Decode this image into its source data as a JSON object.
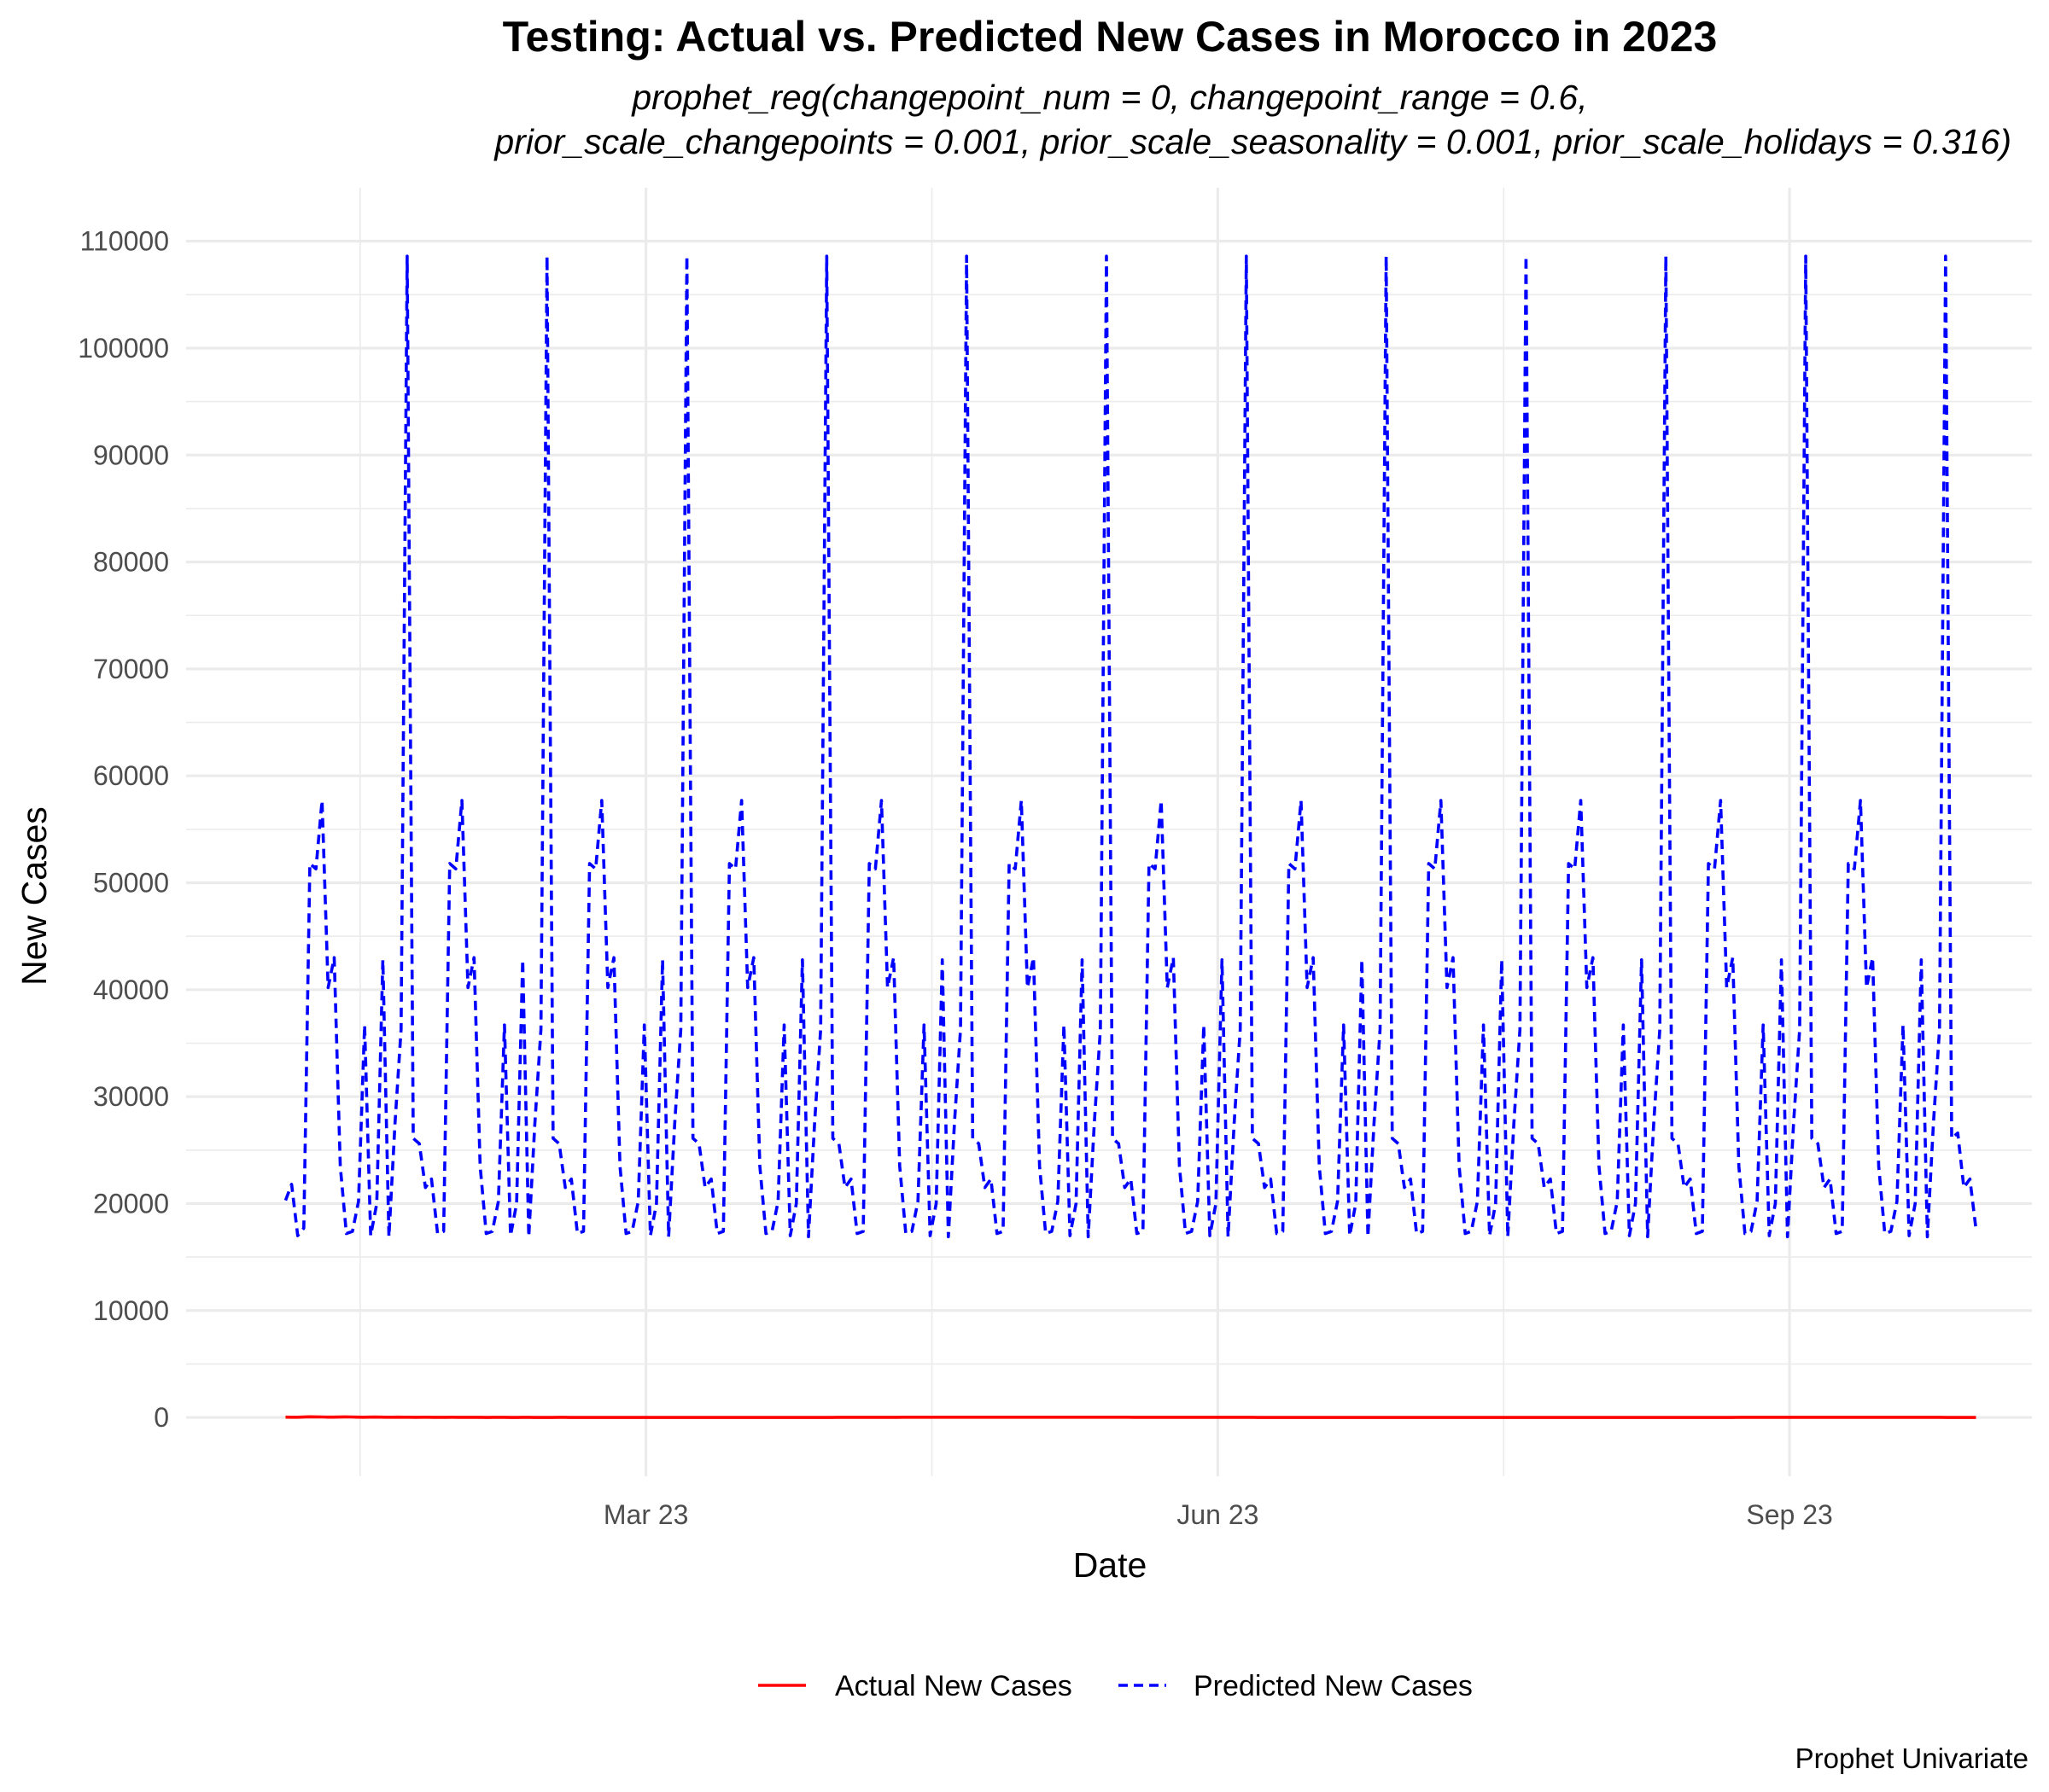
{
  "chart_data": {
    "type": "line",
    "title": "Testing: Actual vs. Predicted New Cases in Morocco in 2023",
    "subtitle_lines": [
      "prophet_reg(changepoint_num = 0, changepoint_range = 0.6,",
      "prior_scale_changepoints = 0.001, prior_scale_seasonality = 0.001, prior_scale_holidays = 0.316)"
    ],
    "xlabel": "Date",
    "ylabel": "New Cases",
    "caption": "Prophet Univariate",
    "x_start": "2023-01-02",
    "x_end": "2023-10-01",
    "xlim": [
      "2022-12-17",
      "2023-10-10"
    ],
    "ylim": [
      -5500,
      115000
    ],
    "x_ticks": [
      {
        "label": "Mar 23",
        "date": "2023-03-01"
      },
      {
        "label": "Jun 23",
        "date": "2023-06-01"
      },
      {
        "label": "Sep 23",
        "date": "2023-09-01"
      }
    ],
    "y_ticks": [
      0,
      10000,
      20000,
      30000,
      40000,
      50000,
      60000,
      70000,
      80000,
      90000,
      100000,
      110000
    ],
    "y_tick_labels": [
      "0",
      "10000",
      "20000",
      "30000",
      "40000",
      "50000",
      "60000",
      "70000",
      "80000",
      "90000",
      "100000",
      "110000"
    ],
    "legend_position": "bottom",
    "series": [
      {
        "name": "Actual New Cases",
        "color": "#ff0000",
        "linestyle": "solid",
        "values": [
          30,
          25,
          20,
          40,
          60,
          50,
          45,
          35,
          30,
          40,
          55,
          45,
          30,
          25,
          35,
          40,
          30,
          20,
          20,
          30,
          25,
          20,
          15,
          20,
          25,
          15,
          10,
          15,
          20,
          15,
          10,
          10,
          15,
          10,
          5,
          10,
          15,
          10,
          5,
          5,
          10,
          10,
          5,
          5,
          5,
          5,
          10,
          10,
          5,
          5,
          0,
          5,
          5,
          5,
          0,
          0,
          5,
          5,
          5,
          5,
          0,
          5,
          5,
          5,
          0,
          0,
          5,
          5,
          5,
          0,
          0,
          0,
          5,
          5,
          5,
          5,
          0,
          5,
          5,
          5,
          5,
          0,
          5,
          5,
          5,
          5,
          5,
          5,
          5,
          5,
          5,
          5,
          5,
          10,
          10,
          10,
          10,
          10,
          10,
          15,
          15,
          15,
          15,
          15,
          20,
          20,
          20,
          20,
          20,
          20,
          20,
          20,
          20,
          20,
          20,
          20,
          20,
          20,
          20,
          20,
          20,
          20,
          20,
          20,
          20,
          20,
          20,
          20,
          20,
          20,
          20,
          20,
          20,
          20,
          20,
          20,
          20,
          20,
          20,
          20,
          20,
          20,
          20,
          15,
          15,
          15,
          15,
          15,
          15,
          15,
          15,
          15,
          15,
          10,
          10,
          10,
          10,
          10,
          10,
          10,
          10,
          10,
          10,
          10,
          5,
          5,
          5,
          5,
          5,
          5,
          5,
          5,
          5,
          5,
          5,
          5,
          5,
          5,
          5,
          5,
          5,
          5,
          5,
          5,
          5,
          5,
          5,
          5,
          5,
          5,
          5,
          5,
          5,
          5,
          5,
          5,
          5,
          5,
          5,
          5,
          5,
          5,
          5,
          5,
          5,
          5,
          5,
          5,
          5,
          5,
          5,
          5,
          5,
          5,
          5,
          5,
          5,
          5,
          5,
          5,
          5,
          5,
          5,
          5,
          5,
          5,
          5,
          5,
          5,
          5,
          5,
          5,
          5,
          5,
          5,
          5,
          5,
          5,
          5,
          5,
          5,
          5,
          5,
          5,
          5,
          10,
          10,
          10,
          10,
          10,
          10,
          10,
          10,
          10,
          10,
          10,
          10,
          10,
          10,
          10,
          10,
          10,
          10,
          10,
          10,
          15,
          15,
          15,
          15,
          15,
          15,
          15,
          15,
          15,
          10,
          10,
          10,
          10,
          10,
          10,
          5,
          5,
          5,
          5,
          5,
          5
        ]
      },
      {
        "name": "Predicted New Cases",
        "color": "#0000ff",
        "linestyle": "dashed",
        "values": [
          20300,
          21800,
          17000,
          17700,
          51800,
          51300,
          57700,
          40200,
          43000,
          23500,
          17200,
          17400,
          20200,
          36700,
          17000,
          20000,
          42800,
          16900,
          27500,
          36300,
          108600,
          26100,
          25600,
          21500,
          22300,
          17200,
          17400,
          51800,
          51300,
          57700,
          40200,
          43000,
          23500,
          17200,
          17400,
          20200,
          36700,
          17000,
          20000,
          42800,
          16900,
          27500,
          36300,
          108600,
          26100,
          25600,
          21500,
          22300,
          17200,
          17400,
          51800,
          51300,
          57700,
          40200,
          43000,
          23500,
          17200,
          17400,
          20200,
          36700,
          17000,
          20000,
          42800,
          16900,
          27500,
          36300,
          108600,
          26100,
          25600,
          21500,
          22300,
          17200,
          17400,
          51800,
          51300,
          57700,
          40200,
          43000,
          23500,
          17200,
          17400,
          20200,
          36700,
          17000,
          20000,
          42800,
          16900,
          27500,
          36300,
          108600,
          26100,
          25600,
          21500,
          22300,
          17200,
          17400,
          51800,
          51300,
          57700,
          40200,
          43000,
          23500,
          17200,
          17400,
          20200,
          36700,
          17000,
          20000,
          42800,
          16900,
          27500,
          36300,
          108600,
          26100,
          25600,
          21500,
          22300,
          17200,
          17400,
          51800,
          51300,
          57700,
          40200,
          43000,
          23500,
          17200,
          17400,
          20200,
          36700,
          17000,
          20000,
          42800,
          16900,
          27500,
          36300,
          108600,
          26100,
          25600,
          21500,
          22300,
          17200,
          17400,
          51800,
          51300,
          57700,
          40200,
          43000,
          23500,
          17200,
          17400,
          20200,
          36700,
          17000,
          20000,
          42800,
          16900,
          27500,
          36300,
          108600,
          26100,
          25600,
          21500,
          22300,
          17200,
          17400,
          51800,
          51300,
          57700,
          40200,
          43000,
          23500,
          17200,
          17400,
          20200,
          36700,
          17000,
          20000,
          42800,
          16900,
          27500,
          36300,
          108600,
          26100,
          25600,
          21500,
          22300,
          17200,
          17400,
          51800,
          51300,
          57700,
          40200,
          43000,
          23500,
          17200,
          17400,
          20200,
          36700,
          17000,
          20000,
          42800,
          16900,
          27500,
          36300,
          108600,
          26100,
          25600,
          21500,
          22300,
          17200,
          17400,
          51800,
          51300,
          57700,
          40200,
          43000,
          23500,
          17200,
          17400,
          20200,
          36700,
          17000,
          20000,
          42800,
          16900,
          27500,
          36300,
          108600,
          26100,
          25600,
          21500,
          22300,
          17200,
          17400,
          51800,
          51300,
          57700,
          40200,
          43000,
          23500,
          17200,
          17400,
          20200,
          36700,
          17000,
          20000,
          42800,
          16900,
          27500,
          36300,
          108600,
          26100,
          25600,
          21500,
          22300,
          17200,
          17400,
          51800,
          51300,
          57700,
          40200,
          43000,
          23500,
          17200,
          17400,
          20200,
          36700,
          17000,
          20000,
          42800,
          16900,
          27500,
          36300,
          108600,
          26100,
          26600,
          21500,
          22300,
          17600
        ]
      }
    ]
  }
}
